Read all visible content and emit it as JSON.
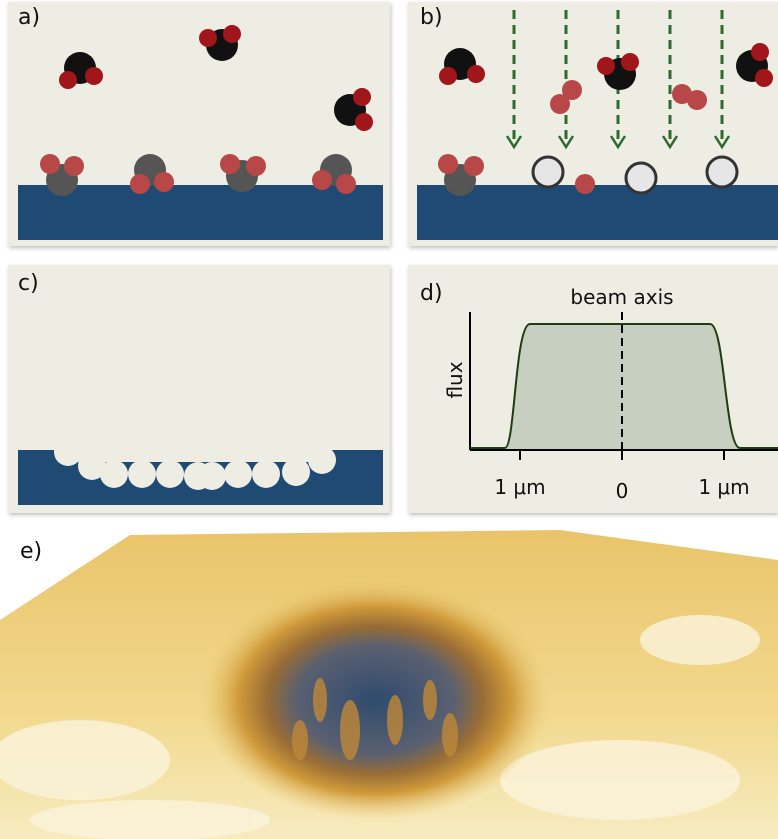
{
  "panels": {
    "a": {
      "label": "a)"
    },
    "b": {
      "label": "b)"
    },
    "c": {
      "label": "c)"
    },
    "d": {
      "label": "d)",
      "annotation": "beam axis",
      "y_label": "flux",
      "x_ticks": [
        "1 μm",
        "0",
        "1 μm"
      ]
    },
    "e": {
      "label": "e)"
    }
  }
}
